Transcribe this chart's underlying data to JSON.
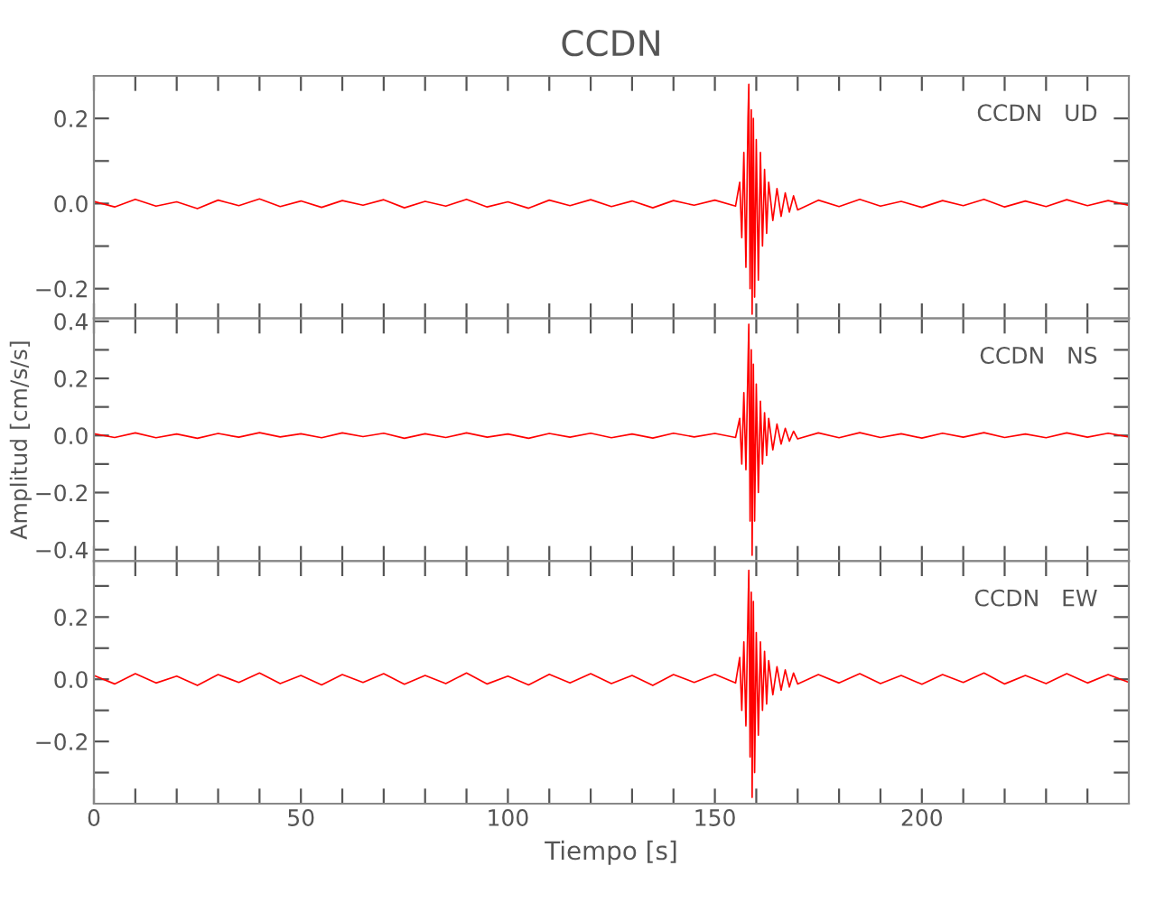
{
  "chart_data": [
    {
      "type": "line",
      "title": "CCDN",
      "annotations": [
        "CCDN   UD"
      ],
      "tick_labels": "y",
      "x": [
        0,
        5,
        10,
        15,
        20,
        25,
        30,
        35,
        40,
        45,
        50,
        55,
        60,
        65,
        70,
        75,
        80,
        85,
        90,
        95,
        100,
        105,
        110,
        115,
        120,
        125,
        130,
        135,
        140,
        145,
        150,
        155,
        156,
        156.5,
        157,
        157.5,
        158,
        158.2,
        158.5,
        158.8,
        159,
        159.3,
        159.6,
        160,
        160.5,
        161,
        161.5,
        162,
        162.5,
        163,
        164,
        165,
        166,
        167,
        168,
        169,
        170,
        175,
        180,
        185,
        190,
        195,
        200,
        205,
        210,
        215,
        220,
        225,
        230,
        235,
        240,
        245,
        250
      ],
      "series": [
        {
          "color": "#ff0000",
          "values": [
            0.005,
            -0.008,
            0.01,
            -0.006,
            0.004,
            -0.012,
            0.008,
            -0.005,
            0.011,
            -0.007,
            0.006,
            -0.009,
            0.007,
            -0.004,
            0.009,
            -0.01,
            0.005,
            -0.006,
            0.01,
            -0.008,
            0.004,
            -0.011,
            0.008,
            -0.005,
            0.009,
            -0.007,
            0.006,
            -0.01,
            0.007,
            -0.004,
            0.008,
            -0.006,
            0.05,
            -0.08,
            0.12,
            -0.15,
            0.2,
            0.28,
            -0.2,
            0.22,
            -0.26,
            0.2,
            -0.22,
            0.15,
            -0.18,
            0.12,
            -0.1,
            0.08,
            -0.07,
            0.05,
            -0.04,
            0.035,
            -0.03,
            0.025,
            -0.02,
            0.018,
            -0.015,
            0.008,
            -0.007,
            0.01,
            -0.006,
            0.005,
            -0.009,
            0.007,
            -0.005,
            0.01,
            -0.008,
            0.006,
            -0.007,
            0.009,
            -0.005,
            0.007,
            -0.004
          ]
        }
      ],
      "xlim": [
        0,
        250
      ],
      "ylim": [
        -0.27,
        0.3
      ],
      "xticks": [
        0,
        {
          "value": 10,
          "label": null
        },
        {
          "value": 20,
          "label": null
        },
        {
          "value": 30,
          "label": null
        },
        {
          "value": 40,
          "label": null
        },
        50,
        {
          "value": 60,
          "label": null
        },
        {
          "value": 70,
          "label": null
        },
        {
          "value": 80,
          "label": null
        },
        {
          "value": 90,
          "label": null
        },
        100,
        {
          "value": 110,
          "label": null
        },
        {
          "value": 120,
          "label": null
        },
        {
          "value": 130,
          "label": null
        },
        {
          "value": 140,
          "label": null
        },
        150,
        {
          "value": 160,
          "label": null
        },
        {
          "value": 170,
          "label": null
        },
        {
          "value": 180,
          "label": null
        },
        {
          "value": 190,
          "label": null
        },
        200,
        {
          "value": 210,
          "label": null
        },
        {
          "value": 220,
          "label": null
        },
        {
          "value": 230,
          "label": null
        },
        {
          "value": 240,
          "label": null
        }
      ],
      "yticks": [
        {
          "value": -0.2,
          "label": "−0.2"
        },
        {
          "value": -0.1,
          "label": null
        },
        {
          "value": 0,
          "label": "0.0"
        },
        {
          "value": 0.1,
          "label": null
        },
        {
          "value": 0.2,
          "label": "0.2"
        }
      ]
    },
    {
      "type": "line",
      "ylabel": "Amplitud [cm/s/s]",
      "annotations": [
        "CCDN   NS"
      ],
      "tick_labels": "y",
      "x": [
        0,
        5,
        10,
        15,
        20,
        25,
        30,
        35,
        40,
        45,
        50,
        55,
        60,
        65,
        70,
        75,
        80,
        85,
        90,
        95,
        100,
        105,
        110,
        115,
        120,
        125,
        130,
        135,
        140,
        145,
        150,
        155,
        156,
        156.5,
        157,
        157.5,
        158,
        158.2,
        158.5,
        158.8,
        159,
        159.3,
        159.6,
        160,
        160.5,
        161,
        161.5,
        162,
        162.5,
        163,
        164,
        165,
        166,
        167,
        168,
        169,
        170,
        175,
        180,
        185,
        190,
        195,
        200,
        205,
        210,
        215,
        220,
        225,
        230,
        235,
        240,
        245,
        250
      ],
      "series": [
        {
          "color": "#ff0000",
          "values": [
            0.006,
            -0.007,
            0.009,
            -0.008,
            0.005,
            -0.01,
            0.007,
            -0.006,
            0.01,
            -0.005,
            0.006,
            -0.008,
            0.009,
            -0.004,
            0.008,
            -0.01,
            0.006,
            -0.007,
            0.009,
            -0.006,
            0.005,
            -0.01,
            0.007,
            -0.006,
            0.008,
            -0.008,
            0.005,
            -0.009,
            0.008,
            -0.005,
            0.007,
            -0.007,
            0.06,
            -0.1,
            0.15,
            -0.12,
            0.25,
            0.39,
            -0.3,
            0.3,
            -0.42,
            0.25,
            -0.3,
            0.18,
            -0.2,
            0.12,
            -0.1,
            0.08,
            -0.07,
            0.06,
            -0.05,
            0.04,
            -0.03,
            0.025,
            -0.02,
            0.015,
            -0.012,
            0.009,
            -0.008,
            0.01,
            -0.007,
            0.006,
            -0.009,
            0.008,
            -0.006,
            0.01,
            -0.007,
            0.005,
            -0.008,
            0.009,
            -0.006,
            0.008,
            -0.005
          ]
        }
      ],
      "xlim": [
        0,
        250
      ],
      "ylim": [
        -0.44,
        0.41
      ],
      "xticks": [
        0,
        {
          "value": 10,
          "label": null
        },
        {
          "value": 20,
          "label": null
        },
        {
          "value": 30,
          "label": null
        },
        {
          "value": 40,
          "label": null
        },
        50,
        {
          "value": 60,
          "label": null
        },
        {
          "value": 70,
          "label": null
        },
        {
          "value": 80,
          "label": null
        },
        {
          "value": 90,
          "label": null
        },
        100,
        {
          "value": 110,
          "label": null
        },
        {
          "value": 120,
          "label": null
        },
        {
          "value": 130,
          "label": null
        },
        {
          "value": 140,
          "label": null
        },
        150,
        {
          "value": 160,
          "label": null
        },
        {
          "value": 170,
          "label": null
        },
        {
          "value": 180,
          "label": null
        },
        {
          "value": 190,
          "label": null
        },
        200,
        {
          "value": 210,
          "label": null
        },
        {
          "value": 220,
          "label": null
        },
        {
          "value": 230,
          "label": null
        },
        {
          "value": 240,
          "label": null
        }
      ],
      "yticks": [
        {
          "value": -0.4,
          "label": "−0.4"
        },
        {
          "value": -0.3,
          "label": null
        },
        {
          "value": -0.2,
          "label": "−0.2"
        },
        {
          "value": -0.1,
          "label": null
        },
        {
          "value": 0,
          "label": "0.0"
        },
        {
          "value": 0.1,
          "label": null
        },
        {
          "value": 0.2,
          "label": "0.2"
        },
        {
          "value": 0.3,
          "label": null
        },
        {
          "value": 0.4,
          "label": "0.4"
        }
      ]
    },
    {
      "type": "line",
      "xlabel": "Tiempo [s]",
      "annotations": [
        "CCDN   EW"
      ],
      "x": [
        0,
        5,
        10,
        15,
        20,
        25,
        30,
        35,
        40,
        45,
        50,
        55,
        60,
        65,
        70,
        75,
        80,
        85,
        90,
        95,
        100,
        105,
        110,
        115,
        120,
        125,
        130,
        135,
        140,
        145,
        150,
        155,
        156,
        156.5,
        157,
        157.5,
        158,
        158.2,
        158.5,
        158.8,
        159,
        159.3,
        159.6,
        160,
        160.5,
        161,
        161.5,
        162,
        162.5,
        163,
        164,
        165,
        166,
        167,
        168,
        169,
        170,
        175,
        180,
        185,
        190,
        195,
        200,
        205,
        210,
        215,
        220,
        225,
        230,
        235,
        240,
        245,
        250
      ],
      "series": [
        {
          "color": "#ff0000",
          "values": [
            0.012,
            -0.015,
            0.018,
            -0.012,
            0.01,
            -0.02,
            0.015,
            -0.01,
            0.02,
            -0.014,
            0.012,
            -0.018,
            0.015,
            -0.01,
            0.018,
            -0.016,
            0.012,
            -0.014,
            0.02,
            -0.015,
            0.01,
            -0.018,
            0.016,
            -0.012,
            0.018,
            -0.014,
            0.012,
            -0.02,
            0.015,
            -0.01,
            0.016,
            -0.012,
            0.07,
            -0.1,
            0.12,
            -0.15,
            0.22,
            0.35,
            -0.25,
            0.28,
            -0.38,
            0.25,
            -0.3,
            0.15,
            -0.18,
            0.12,
            -0.1,
            0.09,
            -0.08,
            0.06,
            -0.05,
            0.04,
            -0.035,
            0.03,
            -0.025,
            0.02,
            -0.015,
            0.015,
            -0.012,
            0.018,
            -0.014,
            0.012,
            -0.016,
            0.015,
            -0.01,
            0.02,
            -0.015,
            0.012,
            -0.014,
            0.018,
            -0.012,
            0.015,
            -0.01
          ]
        }
      ],
      "xlim": [
        0,
        250
      ],
      "ylim": [
        -0.4,
        0.38
      ],
      "xticks": [
        0,
        {
          "value": 10,
          "label": null
        },
        {
          "value": 20,
          "label": null
        },
        {
          "value": 30,
          "label": null
        },
        {
          "value": 40,
          "label": null
        },
        50,
        {
          "value": 60,
          "label": null
        },
        {
          "value": 70,
          "label": null
        },
        {
          "value": 80,
          "label": null
        },
        {
          "value": 90,
          "label": null
        },
        100,
        {
          "value": 110,
          "label": null
        },
        {
          "value": 120,
          "label": null
        },
        {
          "value": 130,
          "label": null
        },
        {
          "value": 140,
          "label": null
        },
        150,
        {
          "value": 160,
          "label": null
        },
        {
          "value": 170,
          "label": null
        },
        {
          "value": 180,
          "label": null
        },
        {
          "value": 190,
          "label": null
        },
        200,
        {
          "value": 210,
          "label": null
        },
        {
          "value": 220,
          "label": null
        },
        {
          "value": 230,
          "label": null
        },
        {
          "value": 240,
          "label": null
        }
      ],
      "yticks": [
        {
          "value": -0.3,
          "label": null
        },
        {
          "value": -0.2,
          "label": "−0.2"
        },
        {
          "value": -0.1,
          "label": null
        },
        {
          "value": 0,
          "label": "0.0"
        },
        {
          "value": 0.1,
          "label": null
        },
        {
          "value": 0.2,
          "label": "0.2"
        },
        {
          "value": 0.3,
          "label": null
        }
      ]
    }
  ]
}
